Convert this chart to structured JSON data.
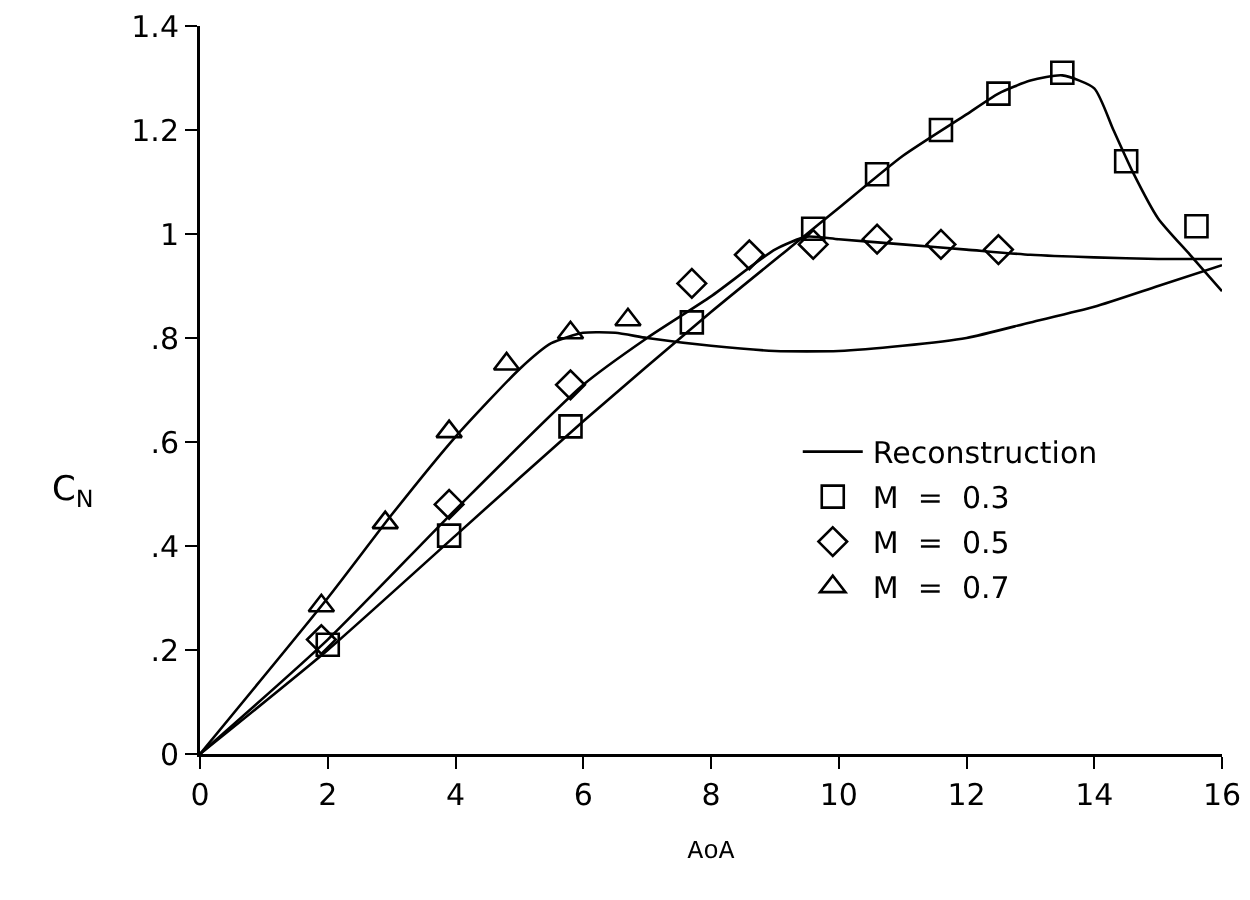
{
  "chart_data": {
    "type": "line",
    "xlabel": "AoA",
    "ylabel": "C$_{N}$",
    "xlim": [
      0,
      16
    ],
    "xticks": [
      0,
      2,
      4,
      6,
      8,
      10,
      12,
      14,
      16
    ],
    "ylim": [
      0,
      1.4
    ],
    "yticks": [
      0,
      {
        "value": 0.2,
        "label": ".2"
      },
      {
        "value": 0.4,
        "label": ".4"
      },
      {
        "value": 0.6,
        "label": ".6"
      },
      {
        "value": 0.8,
        "label": ".8"
      },
      1,
      1.2,
      1.4
    ],
    "grid": false,
    "legend": "right",
    "series": [
      {
        "name": "Reconstruction",
        "color": "#000000",
        "marker": "none",
        "x": [
          0,
          2,
          4,
          6,
          8,
          9.5,
          10,
          11,
          12,
          12.5,
          13,
          13.5,
          14,
          14.3,
          14.6,
          15,
          15.5,
          16
        ],
        "values": [
          0,
          0.2,
          0.42,
          0.64,
          0.85,
          1.0,
          1.05,
          1.15,
          1.23,
          1.27,
          1.295,
          1.305,
          1.28,
          1.2,
          1.12,
          1.03,
          0.96,
          0.89
        ]
      },
      {
        "color": "#000000",
        "marker": "none",
        "x": [
          0,
          2,
          4,
          6,
          7,
          8,
          9,
          9.5,
          10,
          11,
          12,
          13,
          14,
          15,
          16
        ],
        "values": [
          0,
          0.22,
          0.47,
          0.71,
          0.8,
          0.88,
          0.97,
          0.995,
          0.99,
          0.98,
          0.97,
          0.96,
          0.955,
          0.952,
          0.952
        ]
      },
      {
        "color": "#000000",
        "marker": "none",
        "x": [
          0,
          2,
          3,
          4,
          5,
          5.5,
          6,
          6.5,
          7,
          8,
          9,
          10,
          11,
          12,
          13,
          14,
          15,
          16
        ],
        "values": [
          0,
          0.3,
          0.46,
          0.61,
          0.74,
          0.79,
          0.81,
          0.81,
          0.8,
          0.785,
          0.775,
          0.775,
          0.785,
          0.8,
          0.83,
          0.86,
          0.9,
          0.94
        ]
      },
      {
        "name": "M  =  0.3",
        "type": "scatter",
        "color": "#000000",
        "marker": "square",
        "x": [
          2,
          3.9,
          5.8,
          7.7,
          9.6,
          10.6,
          11.6,
          12.5,
          13.5,
          14.5,
          15.6
        ],
        "values": [
          0.21,
          0.42,
          0.63,
          0.83,
          1.01,
          1.115,
          1.2,
          1.27,
          1.31,
          1.14,
          1.015
        ]
      },
      {
        "name": "M  =  0.5",
        "type": "scatter",
        "color": "#000000",
        "marker": "diamond",
        "x": [
          1.9,
          3.9,
          5.8,
          7.7,
          8.6,
          9.6,
          10.6,
          11.6,
          12.5
        ],
        "values": [
          0.22,
          0.48,
          0.71,
          0.905,
          0.96,
          0.98,
          0.99,
          0.98,
          0.97
        ]
      },
      {
        "name": "M  =  0.7",
        "type": "scatter",
        "color": "#000000",
        "marker": "triangle",
        "x": [
          1.9,
          2.9,
          3.9,
          4.8,
          5.8,
          6.7
        ],
        "values": [
          0.285,
          0.445,
          0.62,
          0.75,
          0.81,
          0.835
        ]
      }
    ]
  }
}
